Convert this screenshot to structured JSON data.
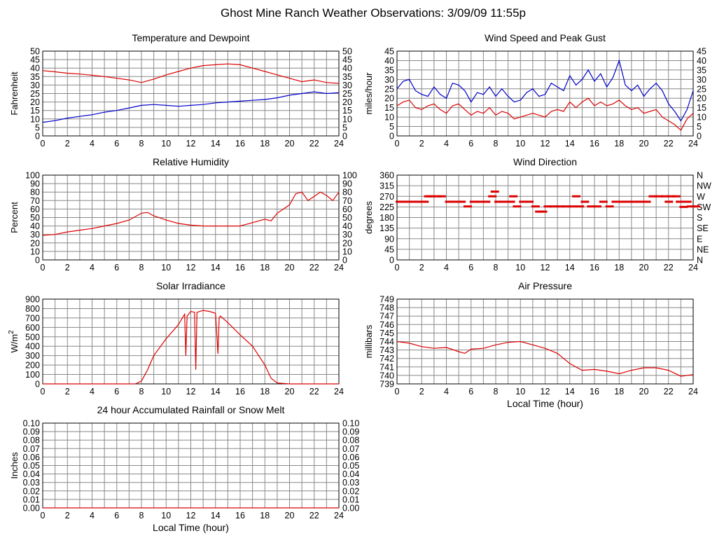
{
  "page": {
    "title": "Ghost Mine Ranch Weather Observations: 3/09/09 11:55p"
  },
  "colors": {
    "red": "#dd0000",
    "blue": "#0000cc",
    "grid": "#888888",
    "axis": "#000000"
  },
  "chart_data": [
    {
      "id": "temp",
      "type": "line",
      "title": "Temperature and Dewpoint",
      "ylabel": "Fahrenheit",
      "xlabel": "",
      "xlim": [
        0,
        24
      ],
      "ylim": [
        0,
        50
      ],
      "x_ticks": [
        "0",
        "2",
        "4",
        "6",
        "8",
        "10",
        "12",
        "14",
        "16",
        "18",
        "20",
        "22",
        "24"
      ],
      "y_ticks": [
        "0",
        "5",
        "10",
        "15",
        "20",
        "25",
        "30",
        "35",
        "40",
        "45",
        "50"
      ],
      "y_ticks_right": [
        "0",
        "5",
        "10",
        "15",
        "20",
        "25",
        "30",
        "35",
        "40",
        "45",
        "50"
      ],
      "grid": true,
      "series": [
        {
          "name": "Temperature",
          "color": "red",
          "x": [
            0,
            1,
            2,
            3,
            4,
            5,
            6,
            7,
            8,
            9,
            10,
            11,
            12,
            13,
            14,
            15,
            16,
            17,
            18,
            19,
            20,
            21,
            22,
            23,
            24
          ],
          "y": [
            38.5,
            37.8,
            37,
            36.5,
            35.8,
            35,
            34,
            33,
            31.5,
            33.5,
            36,
            38,
            40,
            41.5,
            42,
            42.5,
            42,
            40,
            38,
            36,
            34,
            32,
            33,
            31.5,
            31
          ]
        },
        {
          "name": "Dewpoint",
          "color": "blue",
          "x": [
            0,
            1,
            2,
            3,
            4,
            5,
            6,
            7,
            8,
            9,
            10,
            11,
            12,
            13,
            14,
            15,
            16,
            17,
            18,
            19,
            20,
            21,
            22,
            23,
            24
          ],
          "y": [
            8,
            9,
            10.5,
            11.5,
            12.5,
            14,
            15,
            16.5,
            18,
            18.5,
            18,
            17.5,
            18,
            18.5,
            19.5,
            20,
            20.5,
            21,
            21.5,
            22.5,
            24,
            25,
            26,
            25,
            25.5
          ]
        }
      ]
    },
    {
      "id": "wind",
      "type": "line",
      "title": "Wind Speed and Peak Gust",
      "ylabel": "miles/hour",
      "xlabel": "",
      "xlim": [
        0,
        24
      ],
      "ylim": [
        0,
        45
      ],
      "x_ticks": [
        "0",
        "2",
        "4",
        "6",
        "8",
        "10",
        "12",
        "14",
        "16",
        "18",
        "20",
        "22",
        "24"
      ],
      "y_ticks": [
        "0",
        "5",
        "10",
        "15",
        "20",
        "25",
        "30",
        "35",
        "40",
        "45"
      ],
      "y_ticks_right": [
        "0",
        "5",
        "10",
        "15",
        "20",
        "25",
        "30",
        "35",
        "40",
        "45"
      ],
      "grid": true,
      "series": [
        {
          "name": "Peak Gust",
          "color": "blue",
          "x": [
            0,
            0.5,
            1,
            1.5,
            2,
            2.5,
            3,
            3.5,
            4,
            4.5,
            5,
            5.5,
            6,
            6.5,
            7,
            7.5,
            8,
            8.5,
            9,
            9.5,
            10,
            10.5,
            11,
            11.5,
            12,
            12.5,
            13,
            13.5,
            14,
            14.5,
            15,
            15.5,
            16,
            16.5,
            17,
            17.5,
            18,
            18.5,
            19,
            19.5,
            20,
            20.5,
            21,
            21.5,
            22,
            22.5,
            23,
            23.5,
            24
          ],
          "y": [
            25,
            29,
            30,
            24,
            22,
            21,
            26,
            22,
            20,
            28,
            27,
            24,
            18,
            23,
            22,
            26,
            21,
            25,
            21,
            18,
            19,
            23,
            25,
            21,
            22,
            28,
            26,
            24,
            32,
            27,
            30,
            35,
            29,
            33,
            26,
            31,
            40,
            27,
            24,
            27,
            21,
            25,
            28,
            24,
            17,
            13,
            8,
            14,
            24
          ]
        },
        {
          "name": "Wind Speed",
          "color": "red",
          "x": [
            0,
            0.5,
            1,
            1.5,
            2,
            2.5,
            3,
            3.5,
            4,
            4.5,
            5,
            5.5,
            6,
            6.5,
            7,
            7.5,
            8,
            8.5,
            9,
            9.5,
            10,
            10.5,
            11,
            11.5,
            12,
            12.5,
            13,
            13.5,
            14,
            14.5,
            15,
            15.5,
            16,
            16.5,
            17,
            17.5,
            18,
            18.5,
            19,
            19.5,
            20,
            20.5,
            21,
            21.5,
            22,
            22.5,
            23,
            23.5,
            24
          ],
          "y": [
            16,
            18,
            19,
            15,
            14,
            16,
            17,
            14,
            12,
            16,
            17,
            14,
            11,
            13,
            12,
            15,
            11,
            13,
            12,
            9,
            10,
            11,
            12,
            11,
            10,
            13,
            14,
            13,
            18,
            15,
            18,
            20,
            16,
            18,
            16,
            17,
            19,
            16,
            14,
            15,
            12,
            13,
            14,
            10,
            8,
            6,
            3,
            9,
            12
          ]
        }
      ]
    },
    {
      "id": "humidity",
      "type": "line",
      "title": "Relative Humidity",
      "ylabel": "Percent",
      "xlabel": "",
      "xlim": [
        0,
        24
      ],
      "ylim": [
        0,
        100
      ],
      "x_ticks": [
        "0",
        "2",
        "4",
        "6",
        "8",
        "10",
        "12",
        "14",
        "16",
        "18",
        "20",
        "22",
        "24"
      ],
      "y_ticks": [
        "0",
        "10",
        "20",
        "30",
        "40",
        "50",
        "60",
        "70",
        "80",
        "90",
        "100"
      ],
      "y_ticks_right": [
        "0",
        "10",
        "20",
        "30",
        "40",
        "50",
        "60",
        "70",
        "80",
        "90",
        "100"
      ],
      "grid": true,
      "series": [
        {
          "name": "Relative Humidity",
          "color": "red",
          "x": [
            0,
            1,
            2,
            3,
            4,
            5,
            6,
            7,
            8,
            8.5,
            9,
            10,
            11,
            12,
            13,
            14,
            15,
            16,
            17,
            18,
            18.5,
            19,
            20,
            20.5,
            21,
            21.5,
            22,
            22.5,
            23,
            23.5,
            24
          ],
          "y": [
            29,
            30,
            33,
            35,
            37,
            40,
            43,
            47,
            55,
            56,
            52,
            47,
            43,
            41,
            40,
            40,
            40,
            40,
            44,
            48,
            46,
            55,
            65,
            78,
            80,
            70,
            75,
            80,
            76,
            70,
            80
          ]
        }
      ]
    },
    {
      "id": "winddir",
      "type": "scatter",
      "title": "Wind Direction",
      "ylabel": "degrees",
      "xlabel": "",
      "xlim": [
        0,
        24
      ],
      "ylim": [
        0,
        360
      ],
      "x_ticks": [
        "0",
        "2",
        "4",
        "6",
        "8",
        "10",
        "12",
        "14",
        "16",
        "18",
        "20",
        "22",
        "24"
      ],
      "y_ticks": [
        "0",
        "45",
        "90",
        "135",
        "180",
        "225",
        "270",
        "315",
        "360"
      ],
      "y_ticks_right": [
        "N",
        "NE",
        "E",
        "SE",
        "S",
        "SW",
        "W",
        "NW",
        "N"
      ],
      "grid": true,
      "series": [
        {
          "name": "Wind Direction",
          "color": "red",
          "x": [
            0,
            0.5,
            1,
            1.5,
            2,
            2.3,
            2.6,
            3,
            3.4,
            4,
            4.5,
            5,
            5.5,
            6,
            6.5,
            7,
            7.5,
            7.7,
            8,
            8.5,
            9,
            9.2,
            9.5,
            10,
            10.5,
            11,
            11.3,
            11.6,
            12,
            12.5,
            13,
            13.5,
            14,
            14.3,
            14.6,
            15,
            15.5,
            16,
            16.5,
            17,
            17.5,
            18,
            18.5,
            19,
            19.5,
            20,
            20.5,
            21,
            21.5,
            21.8,
            22,
            22.4,
            22.7,
            23,
            23.3,
            23.6,
            24
          ],
          "y": [
            247,
            247,
            247,
            247,
            247,
            270,
            270,
            270,
            270,
            247,
            247,
            247,
            227,
            247,
            247,
            247,
            270,
            290,
            247,
            247,
            247,
            270,
            227,
            247,
            247,
            227,
            205,
            205,
            227,
            227,
            227,
            227,
            227,
            270,
            227,
            247,
            227,
            227,
            247,
            227,
            247,
            247,
            247,
            247,
            247,
            247,
            270,
            270,
            270,
            247,
            270,
            270,
            247,
            225,
            247,
            227,
            227
          ]
        }
      ]
    },
    {
      "id": "solar",
      "type": "line",
      "title": "Solar Irradiance",
      "ylabel": "W/m",
      "ylabel_sup": "2",
      "xlabel": "",
      "xlim": [
        0,
        24
      ],
      "ylim": [
        0,
        900
      ],
      "x_ticks": [
        "0",
        "2",
        "4",
        "6",
        "8",
        "10",
        "12",
        "14",
        "16",
        "18",
        "20",
        "22",
        "24"
      ],
      "y_ticks": [
        "0",
        "100",
        "200",
        "300",
        "400",
        "500",
        "600",
        "700",
        "800",
        "900"
      ],
      "y_ticks_right": [],
      "grid": true,
      "series": [
        {
          "name": "Solar Irradiance",
          "color": "red",
          "x": [
            0,
            7.5,
            8,
            8.5,
            9,
            10,
            11,
            11.5,
            11.6,
            11.7,
            12,
            12.3,
            12.4,
            12.5,
            13,
            13.5,
            14,
            14.2,
            14.3,
            14.4,
            15,
            16,
            17,
            18,
            18.5,
            19,
            20,
            24
          ],
          "y": [
            0,
            0,
            30,
            150,
            300,
            480,
            630,
            740,
            300,
            720,
            770,
            760,
            150,
            760,
            780,
            770,
            750,
            320,
            700,
            720,
            650,
            520,
            400,
            200,
            60,
            10,
            0,
            0
          ]
        }
      ]
    },
    {
      "id": "pressure",
      "type": "line",
      "title": "Air Pressure",
      "ylabel": "millibars",
      "xlabel": "Local Time (hour)",
      "xlim": [
        0,
        24
      ],
      "ylim": [
        739,
        749
      ],
      "x_ticks": [
        "0",
        "2",
        "4",
        "6",
        "8",
        "10",
        "12",
        "14",
        "16",
        "18",
        "20",
        "22",
        "24"
      ],
      "y_ticks": [
        "739",
        "740",
        "741",
        "742",
        "743",
        "744",
        "745",
        "746",
        "747",
        "748",
        "749"
      ],
      "y_ticks_right": [],
      "grid": true,
      "series": [
        {
          "name": "Air Pressure",
          "color": "red",
          "x": [
            0,
            1,
            2,
            3,
            4,
            5,
            5.5,
            6,
            7,
            8,
            9,
            10,
            11,
            12,
            13,
            14,
            15,
            16,
            17,
            18,
            19,
            20,
            21,
            22,
            23,
            24
          ],
          "y": [
            744,
            743.8,
            743.4,
            743.2,
            743.3,
            742.8,
            742.6,
            743.1,
            743.2,
            743.6,
            743.9,
            744,
            743.6,
            743.2,
            742.6,
            741.4,
            740.6,
            740.7,
            740.5,
            740.2,
            740.6,
            740.9,
            740.9,
            740.6,
            739.9,
            740.1
          ]
        }
      ]
    },
    {
      "id": "rain",
      "type": "line",
      "title": "24 hour Accumulated Rainfall or Snow Melt",
      "ylabel": "Inches",
      "xlabel": "Local Time (hour)",
      "xlim": [
        0,
        24
      ],
      "ylim": [
        0,
        0.1
      ],
      "x_ticks": [
        "0",
        "2",
        "4",
        "6",
        "8",
        "10",
        "12",
        "14",
        "16",
        "18",
        "20",
        "22",
        "24"
      ],
      "y_ticks": [
        "0.00",
        "0.01",
        "0.02",
        "0.03",
        "0.04",
        "0.05",
        "0.06",
        "0.07",
        "0.08",
        "0.09",
        "0.10"
      ],
      "y_ticks_right": [
        "0.00",
        "0.01",
        "0.02",
        "0.03",
        "0.04",
        "0.05",
        "0.06",
        "0.07",
        "0.08",
        "0.09",
        "0.10"
      ],
      "grid": true,
      "series": [
        {
          "name": "Accumulated Rainfall",
          "color": "red",
          "x": [
            0,
            24
          ],
          "y": [
            0,
            0
          ]
        }
      ]
    }
  ]
}
